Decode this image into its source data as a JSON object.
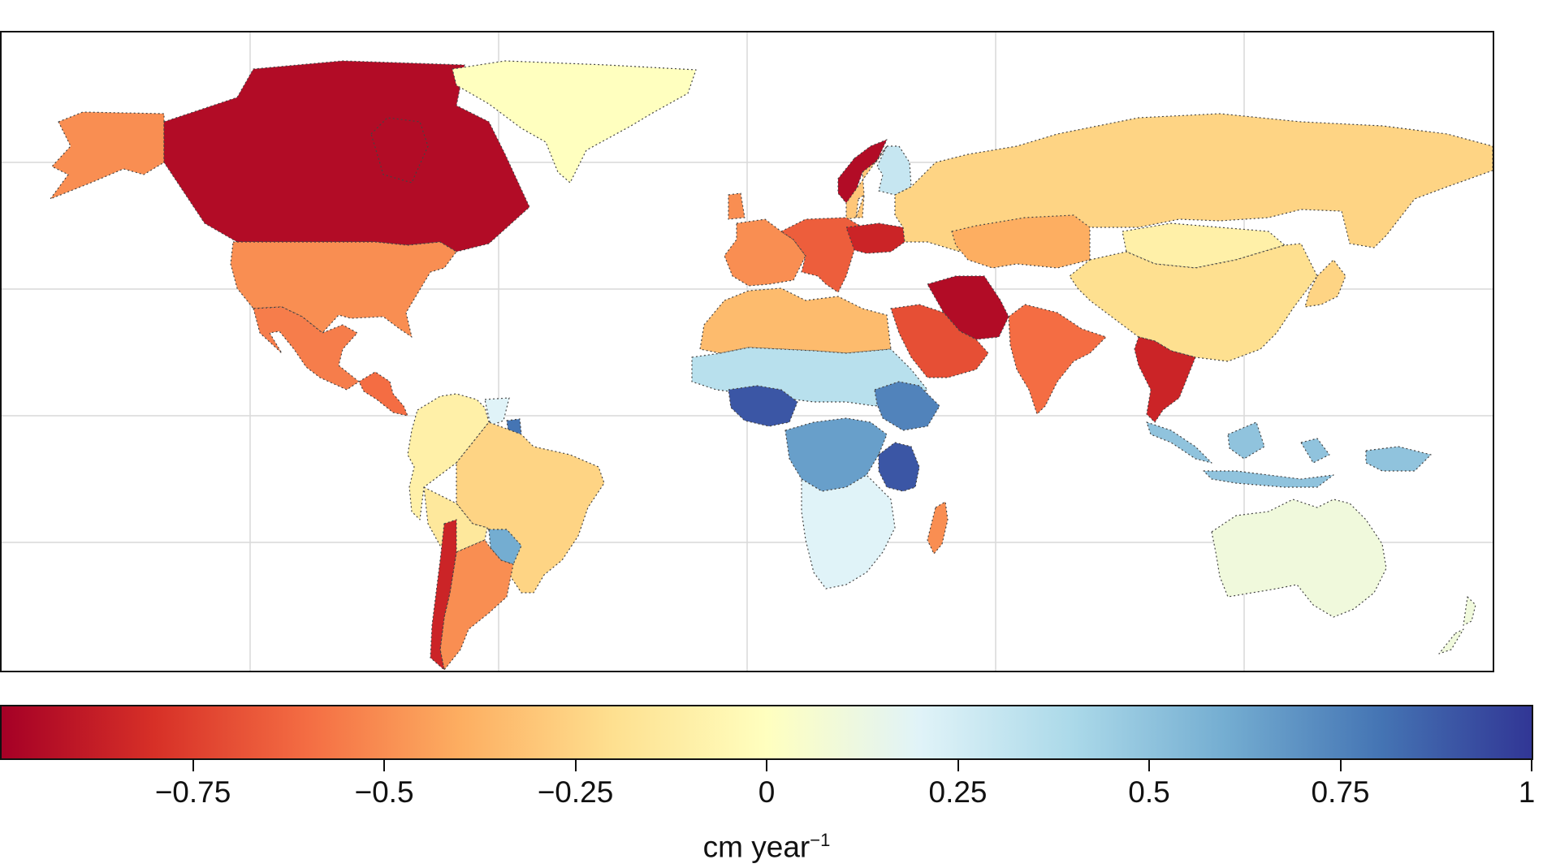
{
  "colorbar": {
    "min": -1,
    "max": 1,
    "colors": [
      "#a50026",
      "#d73027",
      "#f46d43",
      "#fdae61",
      "#fee090",
      "#ffffbf",
      "#e0f3f8",
      "#abd9e9",
      "#74add1",
      "#4575b4",
      "#313695"
    ],
    "ticks": [
      {
        "value": -0.75,
        "label": "−0.75"
      },
      {
        "value": -0.5,
        "label": "−0.5"
      },
      {
        "value": -0.25,
        "label": "−0.25"
      },
      {
        "value": 0,
        "label": "0"
      },
      {
        "value": 0.25,
        "label": "0.25"
      },
      {
        "value": 0.5,
        "label": "0.5"
      },
      {
        "value": 0.75,
        "label": "0.75"
      },
      {
        "value": 1,
        "label": "1"
      }
    ],
    "unit_base": "cm year",
    "unit_exponent": "−1"
  },
  "map": {
    "gridlines": true,
    "regions": [
      {
        "name": "Canada",
        "value": -0.95
      },
      {
        "name": "Alaska",
        "value": -0.5
      },
      {
        "name": "Greenland",
        "value": 0.0
      },
      {
        "name": "United States",
        "value": -0.5
      },
      {
        "name": "Mexico",
        "value": -0.55
      },
      {
        "name": "Central America",
        "value": -0.6
      },
      {
        "name": "Northern South America",
        "value": -0.1
      },
      {
        "name": "Guyana",
        "value": 0.2
      },
      {
        "name": "Suriname",
        "value": 0.8
      },
      {
        "name": "Brazil",
        "value": -0.25
      },
      {
        "name": "Bolivia",
        "value": -0.15
      },
      {
        "name": "Paraguay",
        "value": 0.6
      },
      {
        "name": "Argentina",
        "value": -0.5
      },
      {
        "name": "Chile",
        "value": -0.85
      },
      {
        "name": "Norway",
        "value": -0.95
      },
      {
        "name": "Sweden",
        "value": -0.3
      },
      {
        "name": "Finland",
        "value": 0.3
      },
      {
        "name": "Western Europe",
        "value": -0.5
      },
      {
        "name": "Central Europe",
        "value": -0.65
      },
      {
        "name": "Ukraine",
        "value": -0.85
      },
      {
        "name": "Russia",
        "value": -0.25
      },
      {
        "name": "Kazakhstan",
        "value": -0.4
      },
      {
        "name": "Mongolia",
        "value": -0.1
      },
      {
        "name": "China",
        "value": -0.2
      },
      {
        "name": "Iran",
        "value": -0.95
      },
      {
        "name": "Saudi Arabia",
        "value": -0.7
      },
      {
        "name": "India",
        "value": -0.6
      },
      {
        "name": "Southeast Asia",
        "value": -0.85
      },
      {
        "name": "Indonesia",
        "value": 0.5
      },
      {
        "name": "Australia",
        "value": 0.1
      },
      {
        "name": "New Zealand",
        "value": 0.1
      },
      {
        "name": "North Africa",
        "value": -0.35
      },
      {
        "name": "Sahel",
        "value": 0.35
      },
      {
        "name": "Nigeria",
        "value": 0.9
      },
      {
        "name": "Central Africa",
        "value": 0.65
      },
      {
        "name": "Ethiopia",
        "value": 0.75
      },
      {
        "name": "Tanzania",
        "value": 0.9
      },
      {
        "name": "Southern Africa",
        "value": 0.2
      },
      {
        "name": "Madagascar",
        "value": -0.5
      },
      {
        "name": "Japan",
        "value": -0.25
      }
    ]
  }
}
